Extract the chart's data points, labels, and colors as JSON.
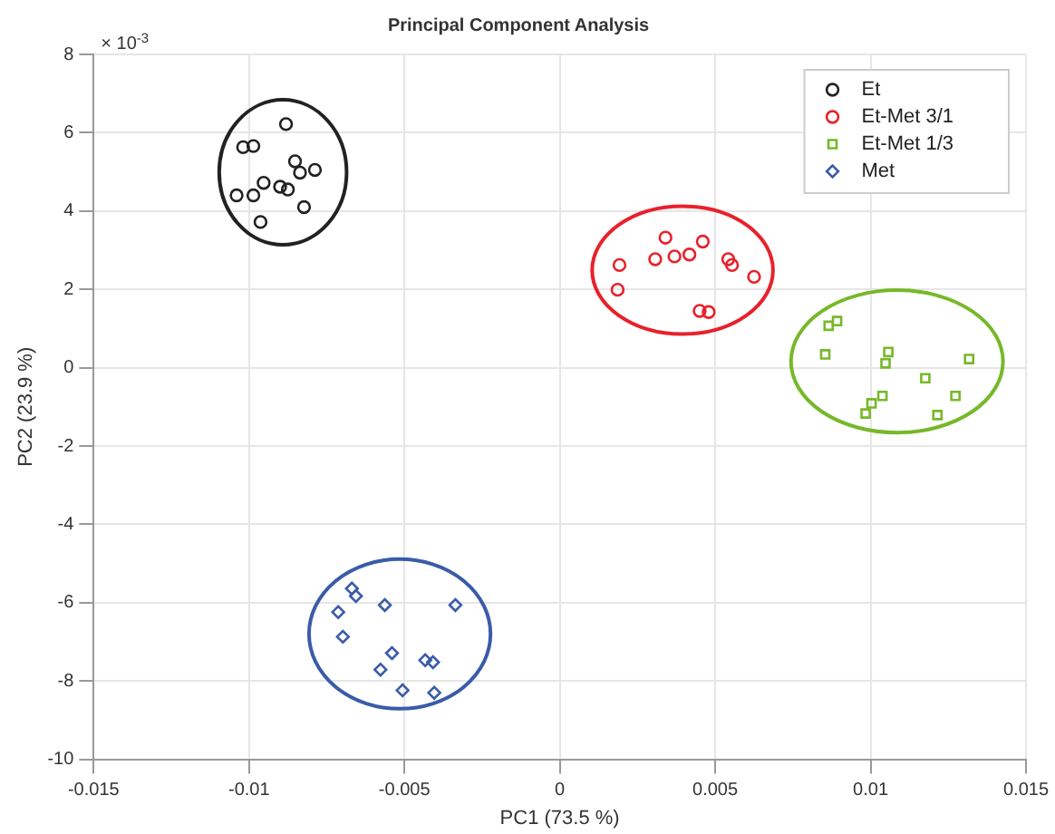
{
  "chart_data": {
    "type": "scatter",
    "title": "Principal Component Analysis",
    "xlabel": "PC1 (73.5 %)",
    "ylabel": "PC2 (23.9 %)",
    "annotations": [
      "× 10$^{-3}$"
    ],
    "xlim": [
      -0.015,
      0.015
    ],
    "xticks": [
      -0.015,
      -0.01,
      -0.005,
      0,
      0.005,
      0.01,
      0.015
    ],
    "ylim": [
      -10,
      8
    ],
    "yticks": [
      -10,
      -8,
      -6,
      -4,
      -2,
      0,
      2,
      4,
      6,
      8
    ],
    "grid": true,
    "legend": "top right",
    "series": [
      {
        "type": "scatter",
        "name": "Et",
        "color": "#222222",
        "marker": "circle",
        "x": [
          -0.00881,
          -0.01019,
          -0.00986,
          -0.00852,
          -0.00836,
          -0.00788,
          -0.00953,
          -0.009,
          -0.00875,
          -0.0104,
          -0.00986,
          -0.00823,
          -0.00963
        ],
        "values": [
          6.22,
          5.63,
          5.66,
          5.27,
          4.98,
          5.05,
          4.72,
          4.62,
          4.55,
          4.4,
          4.4,
          4.1,
          3.72
        ]
      },
      {
        "type": "scatter",
        "name": "Et-Met 3/1",
        "color": "#e8212b",
        "marker": "circle",
        "x": [
          0.0034,
          0.0046,
          0.00307,
          0.00369,
          0.00417,
          0.00542,
          0.00554,
          0.00625,
          0.00192,
          0.00186,
          0.0045,
          0.00479
        ],
        "values": [
          3.32,
          3.22,
          2.77,
          2.84,
          2.89,
          2.77,
          2.62,
          2.32,
          2.62,
          1.99,
          1.45,
          1.42
        ]
      },
      {
        "type": "scatter",
        "name": "Et-Met 1/3",
        "color": "#77b82a",
        "marker": "square",
        "x": [
          0.00865,
          0.00892,
          0.00854,
          0.01057,
          0.01048,
          0.01317,
          0.01176,
          0.01273,
          0.01038,
          0.01003,
          0.00984,
          0.01215
        ],
        "values": [
          1.07,
          1.19,
          0.34,
          0.4,
          0.11,
          0.22,
          -0.27,
          -0.72,
          -0.72,
          -0.91,
          -1.17,
          -1.21
        ]
      },
      {
        "type": "scatter",
        "name": "Met",
        "color": "#3a5ca8",
        "marker": "diamond",
        "x": [
          -0.00669,
          -0.00656,
          -0.00713,
          -0.00563,
          -0.00336,
          -0.00698,
          -0.0054,
          -0.00577,
          -0.00433,
          -0.00408,
          -0.00506,
          -0.00404
        ],
        "values": [
          -5.64,
          -5.83,
          -6.24,
          -6.06,
          -6.06,
          -6.87,
          -7.29,
          -7.71,
          -7.47,
          -7.52,
          -8.24,
          -8.3
        ]
      }
    ]
  }
}
